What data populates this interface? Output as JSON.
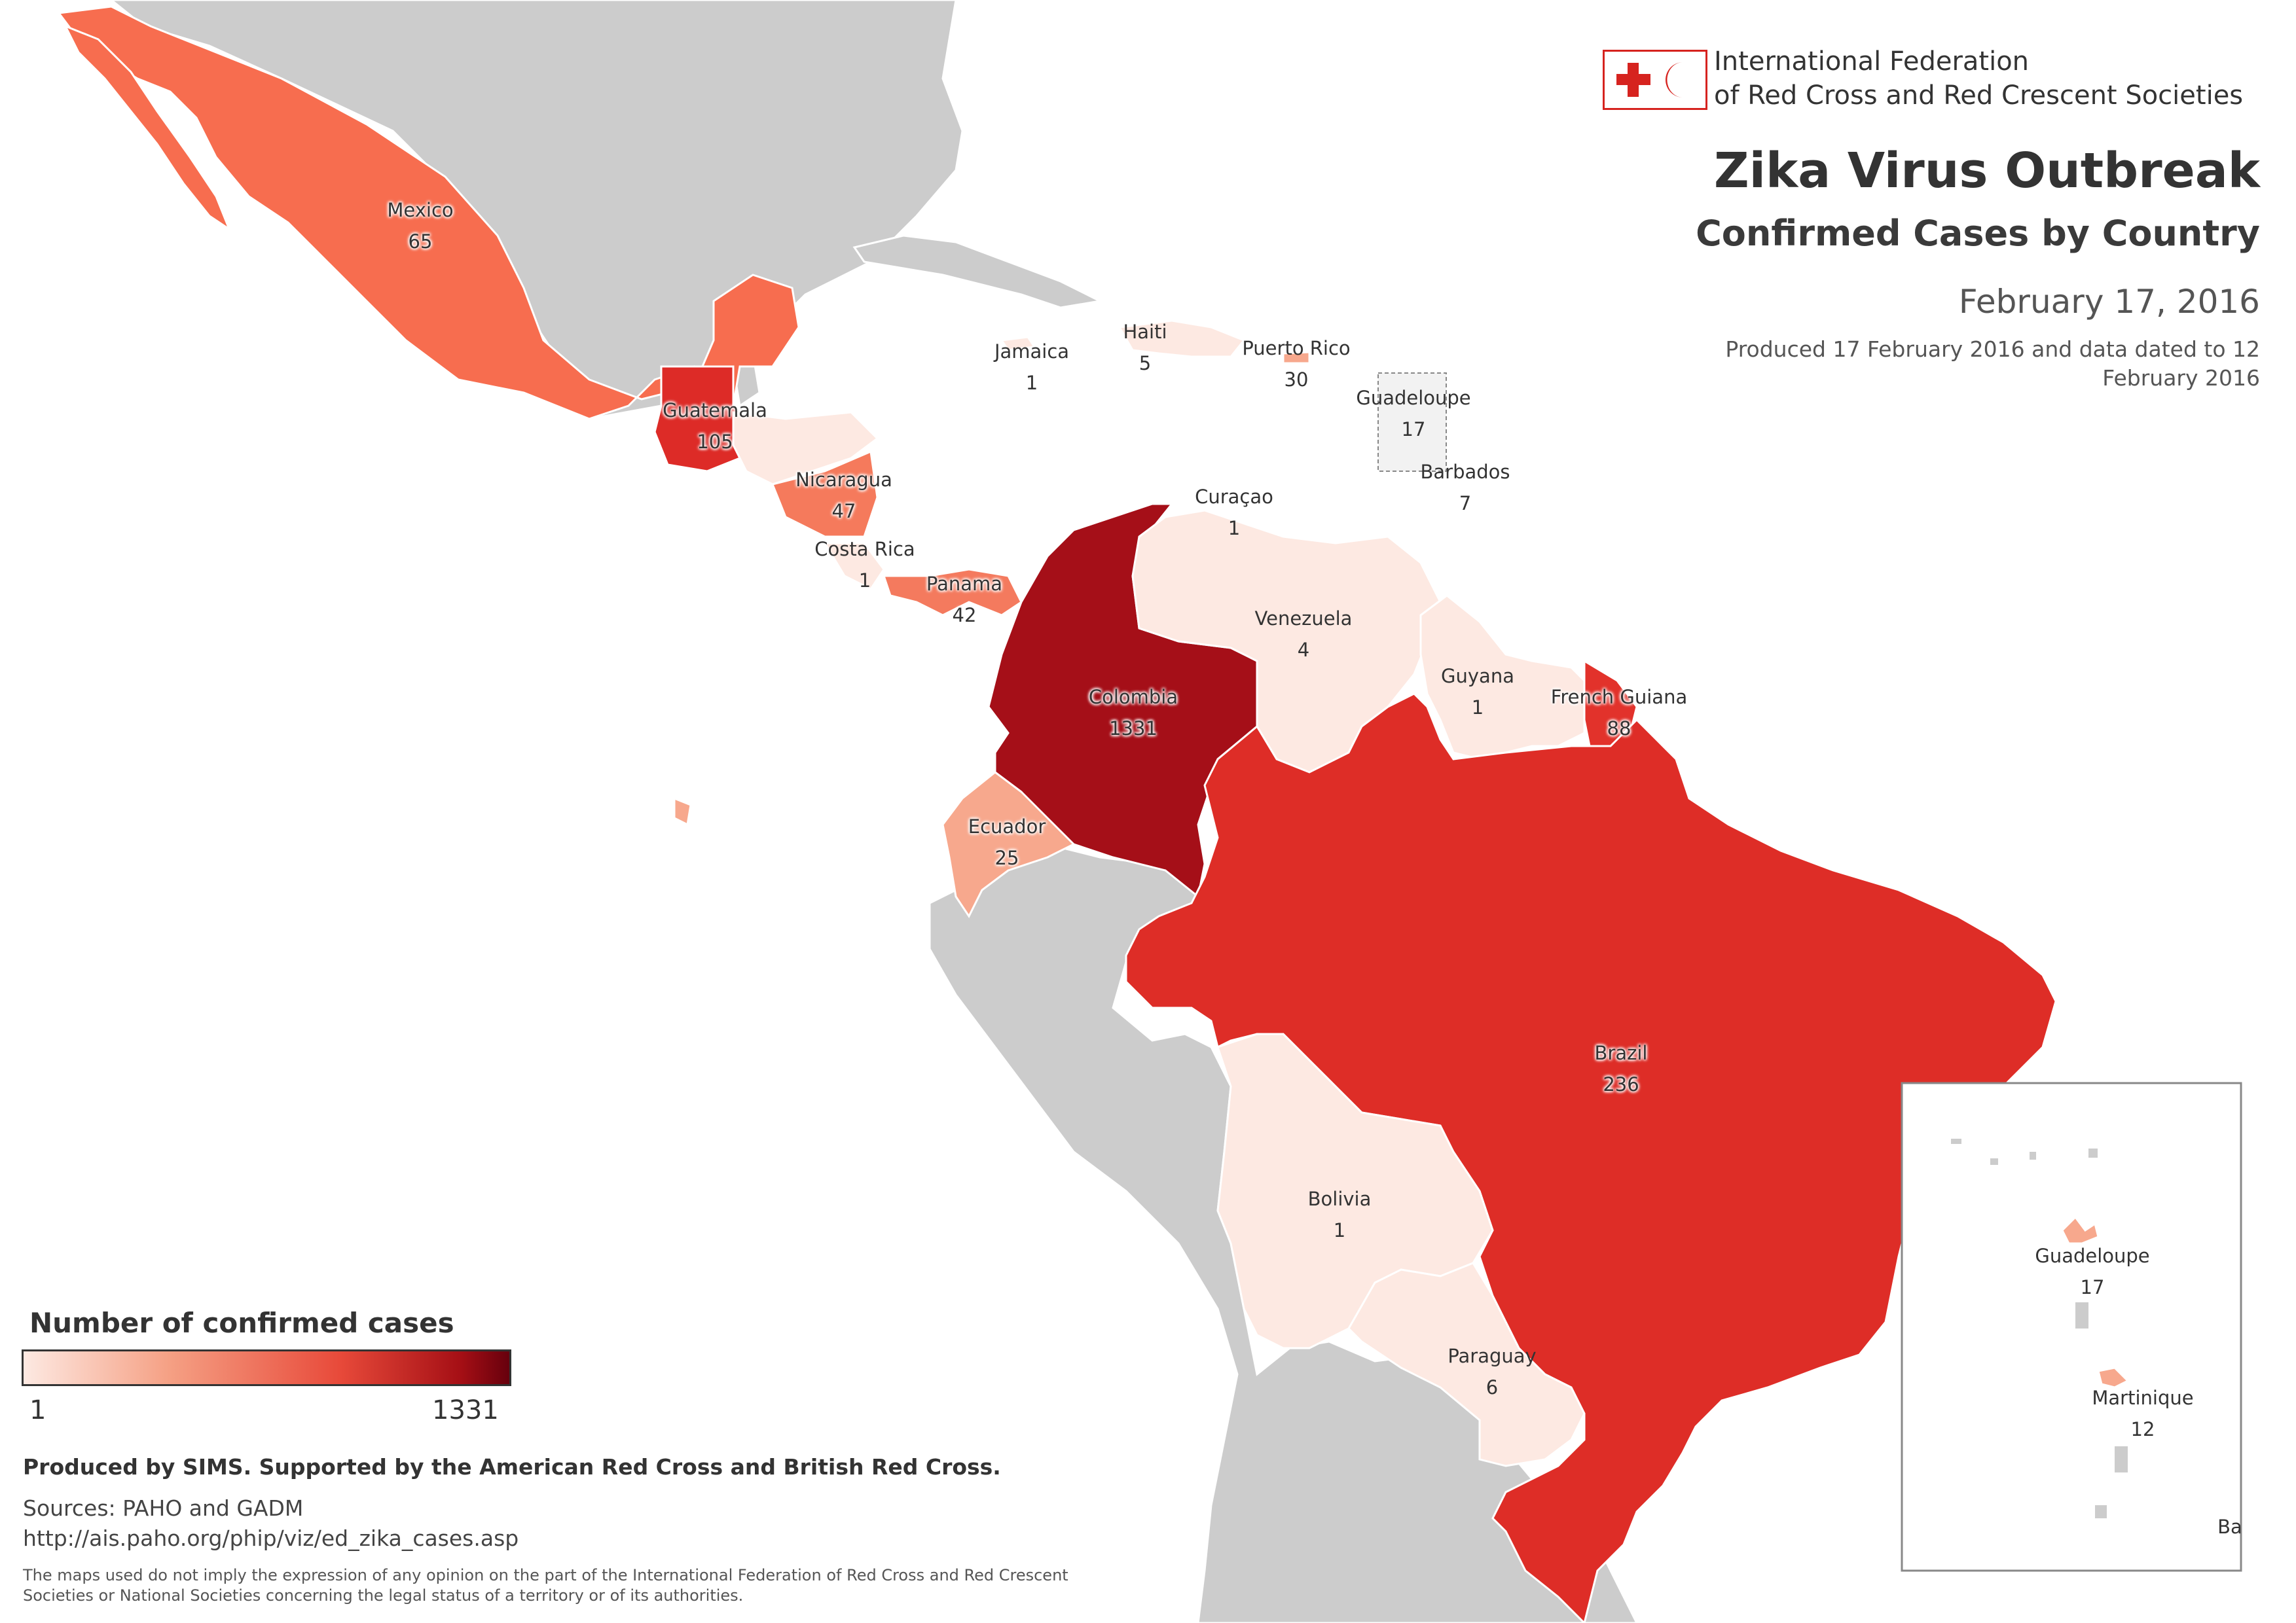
{
  "organization": {
    "name_line1": "International Federation",
    "name_line2": "of Red Cross and Red Crescent Societies",
    "logo_icon": "red-cross-red-crescent-logo",
    "brand_color": "#d6231f"
  },
  "title": "Zika Virus Outbreak",
  "subtitle": "Confirmed Cases by Country",
  "date": "February 17, 2016",
  "produced_note": "Produced 17 February 2016 and data dated to 12 February 2016",
  "legend": {
    "title": "Number of confirmed cases",
    "min_label": "1",
    "max_label": "1331",
    "color_scale": [
      "#fde9e2",
      "#f5a084",
      "#e84a3a",
      "#a50f15",
      "#67000d"
    ]
  },
  "credit": "Produced by SIMS. Supported by the American Red Cross and British Red Cross.",
  "sources_line": "Sources: PAHO and GADM",
  "sources_url": "http://ais.paho.org/phip/viz/ed_zika_cases.asp",
  "disclaimer": "The maps used do not imply the expression of any opinion on the part of the International Federation of Red Cross and Red Crescent Societies or National Societies concerning the legal status of a territory or of its authorities.",
  "colors": {
    "no_data": "#cccccc",
    "water": "#ffffff",
    "border": "#ffffff"
  },
  "countries": {
    "mexico": {
      "name": "Mexico",
      "cases": "65",
      "fill": "#f76d4f"
    },
    "guatemala": {
      "name": "Guatemala",
      "cases": "105",
      "fill": "#dd2b27"
    },
    "nicaragua": {
      "name": "Nicaragua",
      "cases": "47",
      "fill": "#f57a5c"
    },
    "costa_rica": {
      "name": "Costa Rica",
      "cases": "1",
      "fill": "#fde9e2"
    },
    "panama": {
      "name": "Panama",
      "cases": "42",
      "fill": "#f47a5e"
    },
    "colombia": {
      "name": "Colombia",
      "cases": "1331",
      "fill": "#a50f18"
    },
    "venezuela": {
      "name": "Venezuela",
      "cases": "4",
      "fill": "#fde9e2"
    },
    "guyana": {
      "name": "Guyana",
      "cases": "1",
      "fill": "#fde9e2"
    },
    "french_guiana": {
      "name": "French Guiana",
      "cases": "88",
      "fill": "#e2322b"
    },
    "ecuador": {
      "name": "Ecuador",
      "cases": "25",
      "fill": "#f7a88d"
    },
    "brazil": {
      "name": "Brazil",
      "cases": "236",
      "fill": "#de2d27"
    },
    "bolivia": {
      "name": "Bolivia",
      "cases": "1",
      "fill": "#fde9e2"
    },
    "paraguay": {
      "name": "Paraguay",
      "cases": "6",
      "fill": "#fde9e2"
    },
    "jamaica": {
      "name": "Jamaica",
      "cases": "1",
      "fill": "#fde9e2"
    },
    "haiti": {
      "name": "Haiti",
      "cases": "5",
      "fill": "#fde9e2"
    },
    "puerto_rico": {
      "name": "Puerto Rico",
      "cases": "30",
      "fill": "#f7a88d"
    },
    "guadeloupe": {
      "name": "Guadeloupe",
      "cases": "17",
      "fill": "#f7a88d"
    },
    "barbados": {
      "name": "Barbados",
      "cases": "7",
      "fill": "#fde9e2"
    },
    "curacao": {
      "name": "Curaçao",
      "cases": "1",
      "fill": "#fde9e2"
    },
    "honduras_el_salvador": {
      "fill": "#fde9e2"
    }
  },
  "inset": {
    "guadeloupe": {
      "name": "Guadeloupe",
      "cases": "17"
    },
    "martinique": {
      "name": "Martinique",
      "cases": "12"
    },
    "cut_label": "Ba"
  }
}
